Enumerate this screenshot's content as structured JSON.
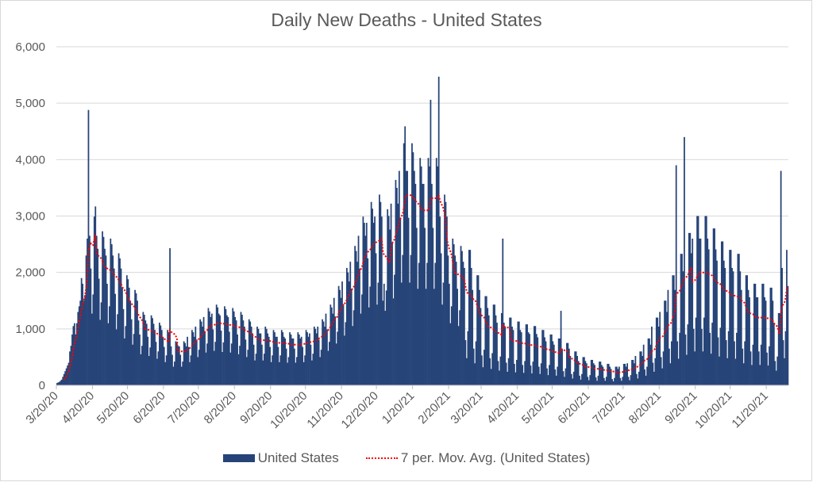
{
  "chart_data": {
    "type": "bar",
    "title": "Daily New Deaths - United States",
    "xlabel": "",
    "ylabel": "",
    "ylim": [
      0,
      6000
    ],
    "yticks": [
      "0",
      "1,000",
      "2,000",
      "3,000",
      "4,000",
      "5,000",
      "6,000"
    ],
    "ytick_values": [
      0,
      1000,
      2000,
      3000,
      4000,
      5000,
      6000
    ],
    "xticks": [
      "3/20/20",
      "4/20/20",
      "5/20/20",
      "6/20/20",
      "7/20/20",
      "8/20/20",
      "9/20/20",
      "10/20/20",
      "11/20/20",
      "12/20/20",
      "1/20/21",
      "2/20/21",
      "3/20/21",
      "4/20/21",
      "5/20/21",
      "6/20/21",
      "7/20/21",
      "8/20/21",
      "9/20/21",
      "10/20/21",
      "11/20/21"
    ],
    "x_start": "3/20/20",
    "x_end": "12/8/21",
    "grid": true,
    "legend_position": "bottom",
    "colors": {
      "bars": "#264478",
      "moving_average": "#ff0000",
      "grid": "#d9d9d9",
      "text": "#595959"
    },
    "series": [
      {
        "name": "United States",
        "type": "bar",
        "values": [
          40,
          50,
          60,
          80,
          100,
          150,
          200,
          250,
          300,
          350,
          400,
          600,
          700,
          900,
          1050,
          1100,
          900,
          1100,
          1300,
          1400,
          1500,
          1900,
          1800,
          1500,
          1600,
          2300,
          2600,
          4880,
          2650,
          2070,
          1270,
          1610,
          2990,
          3170,
          2650,
          2420,
          1890,
          1160,
          1470,
          2730,
          2630,
          2420,
          2300,
          1800,
          1100,
          1400,
          2600,
          2500,
          2300,
          2070,
          1620,
          990,
          1260,
          2340,
          2250,
          2070,
          1730,
          1350,
          830,
          1050,
          1950,
          1880,
          1730,
          1500,
          1170,
          720,
          910,
          1690,
          1630,
          1500,
          1150,
          900,
          550,
          700,
          1300,
          1250,
          1150,
          1090,
          860,
          520,
          670,
          1240,
          1190,
          1090,
          980,
          770,
          470,
          600,
          1110,
          1060,
          980,
          860,
          680,
          410,
          530,
          980,
          940,
          2430,
          690,
          540,
          330,
          420,
          780,
          750,
          690,
          690,
          540,
          330,
          420,
          780,
          750,
          690,
          860,
          680,
          410,
          530,
          980,
          940,
          860,
          1040,
          810,
          500,
          630,
          1170,
          1130,
          1040,
          1210,
          950,
          580,
          740,
          1370,
          1310,
          1210,
          1270,
          990,
          610,
          770,
          1430,
          1380,
          1270,
          1240,
          970,
          590,
          760,
          1400,
          1350,
          1240,
          1210,
          950,
          580,
          740,
          1370,
          1310,
          1210,
          1150,
          900,
          550,
          700,
          1300,
          1250,
          1150,
          1040,
          810,
          500,
          630,
          1170,
          1130,
          1040,
          920,
          720,
          440,
          560,
          1040,
          1000,
          920,
          920,
          720,
          440,
          560,
          1040,
          1000,
          920,
          860,
          680,
          410,
          530,
          980,
          940,
          860,
          860,
          680,
          410,
          530,
          980,
          940,
          860,
          830,
          650,
          400,
          500,
          940,
          900,
          830,
          830,
          650,
          400,
          500,
          940,
          900,
          830,
          860,
          680,
          410,
          530,
          980,
          940,
          860,
          920,
          720,
          440,
          560,
          1040,
          1000,
          920,
          1040,
          810,
          500,
          630,
          1170,
          1130,
          1040,
          1270,
          990,
          610,
          770,
          1430,
          1380,
          1270,
          1550,
          1220,
          740,
          950,
          1760,
          1690,
          1550,
          1840,
          1440,
          880,
          1120,
          2080,
          2000,
          1840,
          2190,
          1710,
          1050,
          1330,
          2470,
          2380,
          2190,
          2650,
          2070,
          1270,
          1610,
          2990,
          2880,
          2650,
          2880,
          2250,
          1380,
          1750,
          3250,
          3130,
          2880,
          2990,
          2340,
          1430,
          1820,
          3380,
          3250,
          2990,
          1500,
          1800,
          1320,
          1680,
          3120,
          3000,
          2760,
          3220,
          2520,
          1540,
          1960,
          3640,
          3500,
          3220,
          3800,
          2970,
          1820,
          2310,
          4290,
          4590,
          3800,
          3800,
          2970,
          1820,
          2310,
          4290,
          4130,
          3800,
          3570,
          2790,
          1710,
          2170,
          4030,
          3880,
          3570,
          3570,
          2790,
          1710,
          2170,
          4030,
          3880,
          5060,
          3570,
          2790,
          1710,
          2170,
          4030,
          3880,
          5470,
          2990,
          2340,
          1430,
          1820,
          3380,
          3250,
          2990,
          2300,
          1800,
          1100,
          1400,
          2600,
          2500,
          2300,
          2190,
          1710,
          1050,
          1330,
          2470,
          2380,
          2190,
          2080,
          800,
          480,
          960,
          2400,
          2400,
          2080,
          1690,
          650,
          390,
          780,
          1950,
          1950,
          1690,
          1370,
          530,
          320,
          630,
          1580,
          1580,
          1370,
          1240,
          480,
          290,
          570,
          1430,
          1430,
          1240,
          1110,
          430,
          260,
          510,
          1280,
          2600,
          1110,
          1040,
          400,
          240,
          480,
          1200,
          1200,
          1040,
          980,
          380,
          230,
          450,
          1130,
          1130,
          980,
          940,
          360,
          220,
          430,
          1080,
          1080,
          940,
          910,
          350,
          210,
          420,
          1050,
          1050,
          910,
          850,
          330,
          200,
          390,
          980,
          980,
          850,
          780,
          300,
          180,
          360,
          900,
          900,
          780,
          720,
          280,
          170,
          330,
          830,
          830,
          1320,
          650,
          250,
          150,
          300,
          750,
          750,
          650,
          520,
          200,
          120,
          240,
          600,
          600,
          520,
          430,
          170,
          100,
          200,
          500,
          500,
          430,
          390,
          150,
          90,
          180,
          450,
          450,
          390,
          360,
          140,
          80,
          170,
          420,
          420,
          360,
          330,
          130,
          80,
          150,
          380,
          380,
          330,
          290,
          110,
          70,
          130,
          330,
          330,
          290,
          330,
          130,
          80,
          150,
          380,
          380,
          330,
          390,
          150,
          90,
          180,
          450,
          450,
          390,
          520,
          200,
          120,
          240,
          600,
          600,
          520,
          720,
          280,
          170,
          330,
          830,
          830,
          720,
          1040,
          400,
          240,
          480,
          1200,
          1200,
          1040,
          1300,
          500,
          300,
          600,
          1500,
          1500,
          1300,
          1690,
          650,
          390,
          780,
          1950,
          1950,
          1690,
          3900,
          780,
          470,
          930,
          2330,
          2330,
          2020,
          4400,
          900,
          540,
          1080,
          2700,
          2700,
          2340,
          2600,
          1000,
          600,
          1200,
          3000,
          3000,
          2600,
          2600,
          1000,
          600,
          1200,
          3000,
          3000,
          2600,
          2410,
          930,
          560,
          1110,
          2780,
          2780,
          2410,
          2210,
          850,
          510,
          1020,
          2550,
          2550,
          2210,
          2080,
          800,
          480,
          960,
          2400,
          2400,
          2080,
          2020,
          780,
          470,
          930,
          2330,
          2330,
          2020,
          1690,
          650,
          390,
          780,
          1950,
          1950,
          1690,
          1560,
          600,
          360,
          720,
          1800,
          1800,
          1560,
          1560,
          600,
          360,
          720,
          1800,
          1800,
          1560,
          1500,
          580,
          350,
          690,
          1730,
          1730,
          1500,
          1110,
          430,
          260,
          510,
          1280,
          1280,
          3800,
          2080,
          800,
          480,
          960,
          2400,
          1760
        ]
      },
      {
        "name": "7 per. Mov. Avg. (United States)",
        "type": "line",
        "period": 7
      }
    ]
  }
}
